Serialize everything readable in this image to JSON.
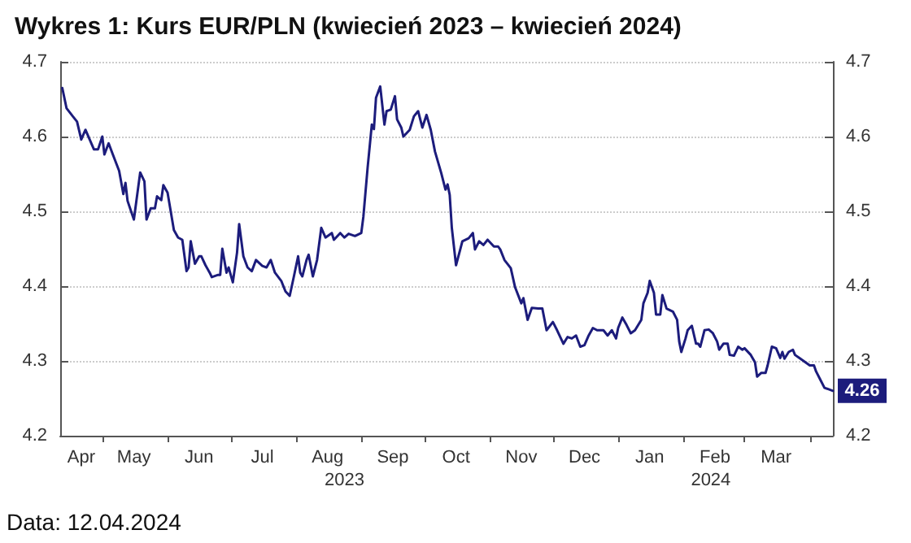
{
  "chart_data": {
    "type": "line",
    "title": "Wykres 1: Kurs EUR/PLN (kwiecień 2023 – kwiecień 2024)",
    "annotations": [
      "Data: 12.04.2024",
      {
        "text": "4.26",
        "x": "2024-04-12",
        "y": 4.26
      }
    ],
    "xlim": [
      "2023-04-11",
      "2024-04-12"
    ],
    "xticks": [
      {
        "value": "2023-04-21",
        "label": "Apr"
      },
      {
        "value": "2023-05-01",
        "label": null
      },
      {
        "value": "2023-05-16",
        "label": "May"
      },
      {
        "value": "2023-06-01",
        "label": null
      },
      {
        "value": "2023-06-16",
        "label": "Jun"
      },
      {
        "value": "2023-07-01",
        "label": null
      },
      {
        "value": "2023-07-16",
        "label": "Jul"
      },
      {
        "value": "2023-08-01",
        "label": null
      },
      {
        "value": "2023-08-16",
        "label": "Aug"
      },
      {
        "value": "2023-09-01",
        "label": null
      },
      {
        "value": "2023-09-16",
        "label": "Sep"
      },
      {
        "value": "2023-10-01",
        "label": null
      },
      {
        "value": "2023-10-16",
        "label": "Oct"
      },
      {
        "value": "2023-11-01",
        "label": null
      },
      {
        "value": "2023-11-16",
        "label": "Nov"
      },
      {
        "value": "2023-12-01",
        "label": null
      },
      {
        "value": "2023-12-16",
        "label": "Dec"
      },
      {
        "value": "2024-01-01",
        "label": null
      },
      {
        "value": "2024-01-16",
        "label": "Jan"
      },
      {
        "value": "2024-02-01",
        "label": null
      },
      {
        "value": "2024-02-16",
        "label": "Feb"
      },
      {
        "value": "2024-03-01",
        "label": null
      },
      {
        "value": "2024-03-16",
        "label": "Mar"
      },
      {
        "value": "2024-04-01",
        "label": null
      }
    ],
    "x2lim": [
      "2023-04-11",
      "2024-04-12"
    ],
    "x2ticks": [
      {
        "value": "2023-08-24",
        "label": "2023"
      },
      {
        "value": "2024-02-14",
        "label": "2024"
      }
    ],
    "ylim": [
      4.2,
      4.7
    ],
    "yticks": [
      4.2,
      4.3,
      4.4,
      4.5,
      4.6,
      4.7
    ],
    "y2lim": [
      4.2,
      4.7
    ],
    "y2ticks": [
      4.2,
      4.3,
      4.4,
      4.5,
      4.6,
      4.7
    ],
    "grid": "y",
    "marker": "none",
    "line_style": "solid",
    "series": [
      {
        "color": "#1c1c7c",
        "x": [
          "2023-04-12",
          "2023-04-14",
          "2023-04-17",
          "2023-04-19",
          "2023-04-21",
          "2023-04-23",
          "2023-04-25",
          "2023-04-27",
          "2023-04-29",
          "2023-05-01",
          "2023-05-02",
          "2023-05-04",
          "2023-05-06",
          "2023-05-09",
          "2023-05-11",
          "2023-05-12",
          "2023-05-13",
          "2023-05-16",
          "2023-05-19",
          "2023-05-21",
          "2023-05-22",
          "2023-05-24",
          "2023-05-26",
          "2023-05-27",
          "2023-05-29",
          "2023-05-30",
          "2023-06-01",
          "2023-06-04",
          "2023-06-06",
          "2023-06-08",
          "2023-06-10",
          "2023-06-11",
          "2023-06-12",
          "2023-06-14",
          "2023-06-16",
          "2023-06-17",
          "2023-06-19",
          "2023-06-21",
          "2023-06-22",
          "2023-06-25",
          "2023-06-26",
          "2023-06-27",
          "2023-06-29",
          "2023-06-30",
          "2023-07-02",
          "2023-07-04",
          "2023-07-05",
          "2023-07-07",
          "2023-07-09",
          "2023-07-11",
          "2023-07-13",
          "2023-07-16",
          "2023-07-18",
          "2023-07-20",
          "2023-07-22",
          "2023-07-25",
          "2023-07-27",
          "2023-07-29",
          "2023-07-31",
          "2023-08-02",
          "2023-08-03",
          "2023-08-04",
          "2023-08-06",
          "2023-08-07",
          "2023-08-09",
          "2023-08-11",
          "2023-08-13",
          "2023-08-15",
          "2023-08-18",
          "2023-08-19",
          "2023-08-22",
          "2023-08-24",
          "2023-08-26",
          "2023-08-29",
          "2023-09-01",
          "2023-09-02",
          "2023-09-04",
          "2023-09-06",
          "2023-09-07",
          "2023-09-08",
          "2023-09-10",
          "2023-09-12",
          "2023-09-13",
          "2023-09-15",
          "2023-09-17",
          "2023-09-18",
          "2023-09-20",
          "2023-09-21",
          "2023-09-24",
          "2023-09-26",
          "2023-09-28",
          "2023-09-30",
          "2023-10-02",
          "2023-10-04",
          "2023-10-06",
          "2023-10-09",
          "2023-10-11",
          "2023-10-12",
          "2023-10-13",
          "2023-10-14",
          "2023-10-16",
          "2023-10-18",
          "2023-10-19",
          "2023-10-22",
          "2023-10-24",
          "2023-10-25",
          "2023-10-27",
          "2023-10-29",
          "2023-10-31",
          "2023-11-03",
          "2023-11-05",
          "2023-11-06",
          "2023-11-08",
          "2023-11-11",
          "2023-11-13",
          "2023-11-16",
          "2023-11-17",
          "2023-11-19",
          "2023-11-21",
          "2023-11-24",
          "2023-11-26",
          "2023-11-28",
          "2023-12-01",
          "2023-12-03",
          "2023-12-06",
          "2023-12-08",
          "2023-12-10",
          "2023-12-12",
          "2023-12-14",
          "2023-12-16",
          "2023-12-18",
          "2023-12-20",
          "2023-12-22",
          "2023-12-25",
          "2023-12-27",
          "2023-12-29",
          "2023-12-31",
          "2024-01-01",
          "2024-01-03",
          "2024-01-05",
          "2024-01-07",
          "2024-01-09",
          "2024-01-12",
          "2024-01-13",
          "2024-01-15",
          "2024-01-16",
          "2024-01-18",
          "2024-01-19",
          "2024-01-21",
          "2024-01-22",
          "2024-01-24",
          "2024-01-27",
          "2024-01-29",
          "2024-01-30",
          "2024-01-31",
          "2024-02-02",
          "2024-02-03",
          "2024-02-05",
          "2024-02-07",
          "2024-02-08",
          "2024-02-09",
          "2024-02-11",
          "2024-02-13",
          "2024-02-15",
          "2024-02-17",
          "2024-02-18",
          "2024-02-20",
          "2024-02-22",
          "2024-02-23",
          "2024-02-25",
          "2024-02-27",
          "2024-02-29",
          "2024-03-01",
          "2024-03-04",
          "2024-03-06",
          "2024-03-07",
          "2024-03-09",
          "2024-03-11",
          "2024-03-12",
          "2024-03-14",
          "2024-03-16",
          "2024-03-18",
          "2024-03-19",
          "2024-03-20",
          "2024-03-22",
          "2024-03-24",
          "2024-03-25",
          "2024-03-27",
          "2024-04-01",
          "2024-04-03",
          "2024-04-04",
          "2024-04-06",
          "2024-04-08",
          "2024-04-10",
          "2024-04-12"
        ],
        "values": [
          4.665,
          4.638,
          4.627,
          4.62,
          4.596,
          4.609,
          4.596,
          4.583,
          4.583,
          4.6,
          4.576,
          4.591,
          4.576,
          4.554,
          4.523,
          4.538,
          4.514,
          4.489,
          4.552,
          4.54,
          4.489,
          4.504,
          4.504,
          4.52,
          4.515,
          4.535,
          4.525,
          4.475,
          4.465,
          4.462,
          4.42,
          4.425,
          4.46,
          4.43,
          4.44,
          4.44,
          4.428,
          4.418,
          4.412,
          4.415,
          4.415,
          4.45,
          4.418,
          4.425,
          4.405,
          4.445,
          4.483,
          4.44,
          4.425,
          4.42,
          4.435,
          4.427,
          4.425,
          4.435,
          4.418,
          4.407,
          4.393,
          4.387,
          4.413,
          4.44,
          4.418,
          4.413,
          4.435,
          4.442,
          4.413,
          4.435,
          4.478,
          4.465,
          4.471,
          4.462,
          4.471,
          4.465,
          4.47,
          4.467,
          4.471,
          4.493,
          4.558,
          4.616,
          4.61,
          4.652,
          4.667,
          4.616,
          4.634,
          4.636,
          4.654,
          4.623,
          4.612,
          4.6,
          4.609,
          4.627,
          4.634,
          4.612,
          4.629,
          4.609,
          4.58,
          4.551,
          4.529,
          4.536,
          4.522,
          4.478,
          4.428,
          4.449,
          4.46,
          4.464,
          4.471,
          4.449,
          4.46,
          4.455,
          4.462,
          4.453,
          4.453,
          4.449,
          4.435,
          4.424,
          4.399,
          4.377,
          4.384,
          4.355,
          4.371,
          4.37,
          4.37,
          4.341,
          4.352,
          4.341,
          4.323,
          4.332,
          4.33,
          4.334,
          4.319,
          4.321,
          4.334,
          4.344,
          4.341,
          4.341,
          4.334,
          4.341,
          4.33,
          4.344,
          4.358,
          4.348,
          4.337,
          4.341,
          4.355,
          4.377,
          4.391,
          4.407,
          4.391,
          4.362,
          4.362,
          4.388,
          4.37,
          4.366,
          4.355,
          4.326,
          4.312,
          4.33,
          4.341,
          4.347,
          4.323,
          4.323,
          4.319,
          4.341,
          4.342,
          4.337,
          4.326,
          4.315,
          4.323,
          4.323,
          4.308,
          4.307,
          4.319,
          4.315,
          4.317,
          4.308,
          4.298,
          4.279,
          4.284,
          4.284,
          4.294,
          4.319,
          4.317,
          4.304,
          4.312,
          4.303,
          4.312,
          4.315,
          4.308,
          4.304,
          4.294,
          4.294,
          4.286,
          4.275,
          4.264,
          4.262,
          4.26
        ]
      }
    ]
  }
}
